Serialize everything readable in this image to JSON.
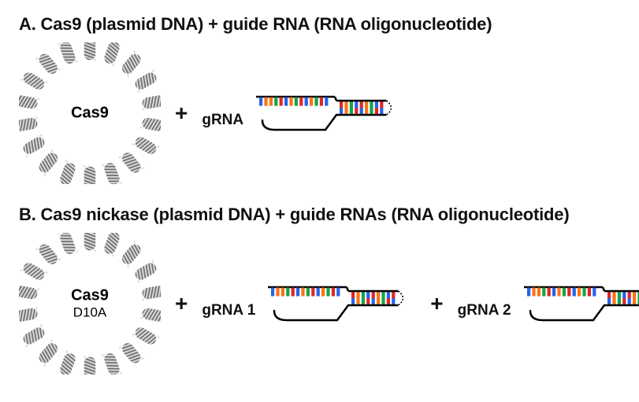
{
  "panelA": {
    "title": "A. Cas9 (plasmid DNA) + guide RNA (RNA oligonucleotide)",
    "plasmid_label_line1": "Cas9",
    "plasmid_label_line2": "",
    "plasmid_label_fontsize": 20,
    "grna_items": [
      {
        "label": "gRNA"
      }
    ]
  },
  "panelB": {
    "title": "B. Cas9 nickase (plasmid DNA) + guide RNAs (RNA oligonucleotide)",
    "plasmid_label_line1": "Cas9",
    "plasmid_label_line2": "D10A",
    "plasmid_label_fontsize": 20,
    "plasmid_sub_fontsize": 17,
    "grna_items": [
      {
        "label": "gRNA 1"
      },
      {
        "label": "gRNA 2"
      }
    ]
  },
  "style": {
    "plasmid": {
      "outer_radius": 82,
      "segment_count": 18,
      "segment_color": "#6f6f6f",
      "segment_stroke": "#ffffff",
      "helix_stripe": "#d9d9d9"
    },
    "grna": {
      "colors": [
        "#2563eb",
        "#f97316",
        "#f97316",
        "#16a34a",
        "#dc2626",
        "#2563eb",
        "#f97316",
        "#16a34a",
        "#dc2626",
        "#2563eb",
        "#f97316",
        "#16a34a",
        "#dc2626",
        "#2563eb"
      ],
      "pair_colors_top": [
        "#dc2626",
        "#f97316",
        "#16a34a",
        "#2563eb",
        "#dc2626",
        "#f97316",
        "#16a34a",
        "#2563eb",
        "#dc2626"
      ],
      "pair_colors_bot": [
        "#2563eb",
        "#f97316",
        "#16a34a",
        "#dc2626",
        "#2563eb",
        "#f97316",
        "#16a34a",
        "#dc2626",
        "#2563eb"
      ],
      "backbone_color": "#000000",
      "scaffold_color": "#000000",
      "dotted_color": "#000000",
      "width": 190,
      "height": 70
    },
    "title_fontsize": 22,
    "plus_fontsize": 28,
    "background": "#ffffff"
  }
}
